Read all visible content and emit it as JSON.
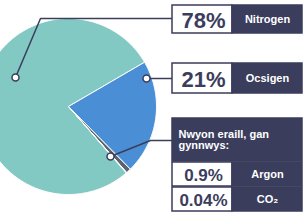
{
  "chart_data": {
    "type": "pie",
    "categories": [
      "Nitrogen",
      "Ocsigen",
      "Argon",
      "CO₂"
    ],
    "values": [
      78,
      21,
      0.9,
      0.04
    ],
    "value_labels": [
      "78%",
      "21%",
      "0.9%",
      "0.04%"
    ],
    "colors": [
      "#82c8c3",
      "#4a8fd6",
      "#5a6470",
      "#c8c8c8"
    ],
    "annotations": [
      "Nwyon eraill, gan gynnwys:"
    ],
    "data_labels": true
  }
}
